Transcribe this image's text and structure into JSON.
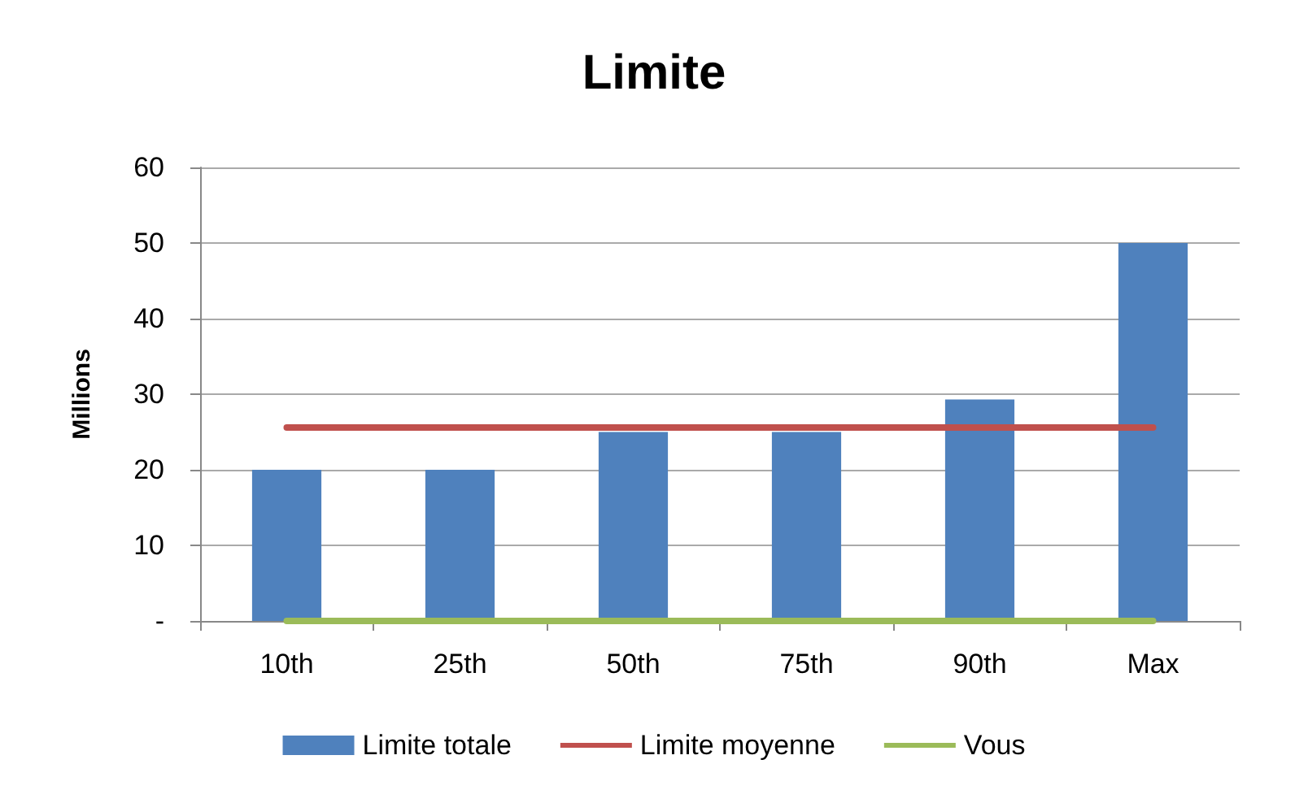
{
  "chart_data": {
    "type": "bar",
    "title": "Limite",
    "ylabel": "Millions",
    "categories": [
      "10th",
      "25th",
      "50th",
      "75th",
      "90th",
      "Max"
    ],
    "series": [
      {
        "name": "Limite totale",
        "color": "#4f81bd",
        "values": [
          20,
          20,
          25,
          25,
          29.3,
          50
        ]
      },
      {
        "name": "Limite moyenne",
        "type": "line",
        "color": "#c0504d",
        "values": [
          25.6,
          25.6,
          25.6,
          25.6,
          25.6,
          25.6
        ]
      },
      {
        "name": "Vous",
        "type": "line",
        "color": "#9bbb59",
        "values": [
          0,
          0,
          0,
          0,
          0,
          0
        ]
      }
    ],
    "ylim": [
      0,
      60
    ],
    "yticks": [
      {
        "value": 0,
        "label": "-"
      },
      10,
      20,
      30,
      40,
      50,
      60
    ],
    "grid": "y",
    "legend": "bottom",
    "marker": "none",
    "line_style": "solid"
  }
}
